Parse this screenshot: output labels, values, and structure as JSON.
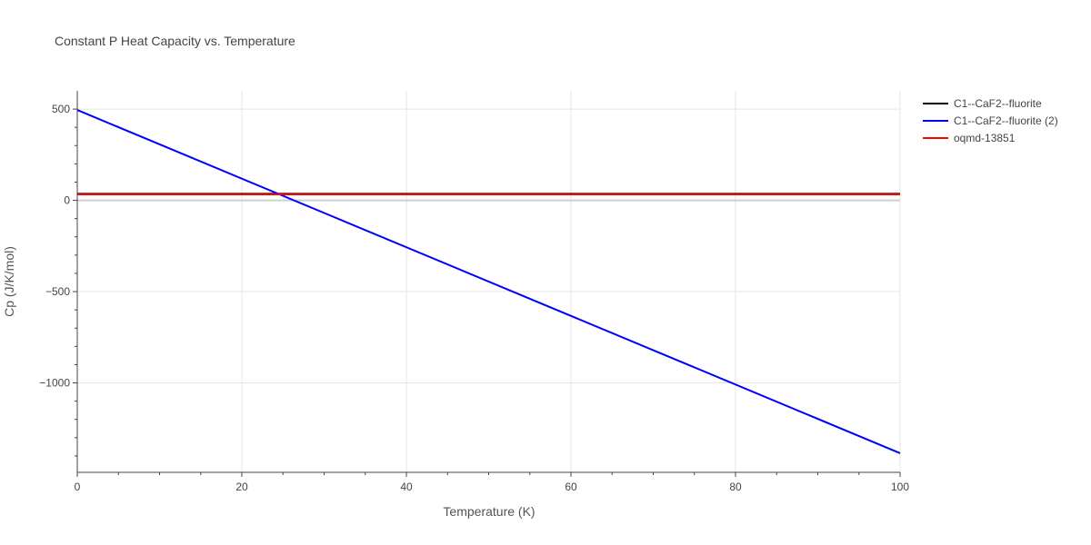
{
  "chart_data": {
    "type": "line",
    "title": "Constant P Heat Capacity vs. Temperature",
    "xlabel": "Temperature (K)",
    "ylabel": "Cp (J/K/mol)",
    "xlim": [
      0,
      100
    ],
    "ylim": [
      -1490,
      600
    ],
    "xticks": [
      0,
      20,
      40,
      60,
      80,
      100
    ],
    "xtick_labels": [
      "0",
      "20",
      "40",
      "60",
      "80",
      "100"
    ],
    "yticks": [
      500,
      0,
      -500,
      -1000
    ],
    "ytick_labels": [
      "500",
      "0",
      "−500",
      "−1000"
    ],
    "grid": true,
    "legend_position": "right",
    "series": [
      {
        "name": "C1--CaF2--fluorite",
        "color": "#000000",
        "x": [
          0,
          100
        ],
        "y": [
          36,
          36
        ]
      },
      {
        "name": "C1--CaF2--fluorite (2)",
        "color": "#0000ff",
        "x": [
          0,
          100
        ],
        "y": [
          495,
          -1385
        ]
      },
      {
        "name": "oqmd-13851",
        "color": "#ff0000",
        "x": [
          0,
          100
        ],
        "y": [
          33,
          33
        ]
      }
    ]
  }
}
